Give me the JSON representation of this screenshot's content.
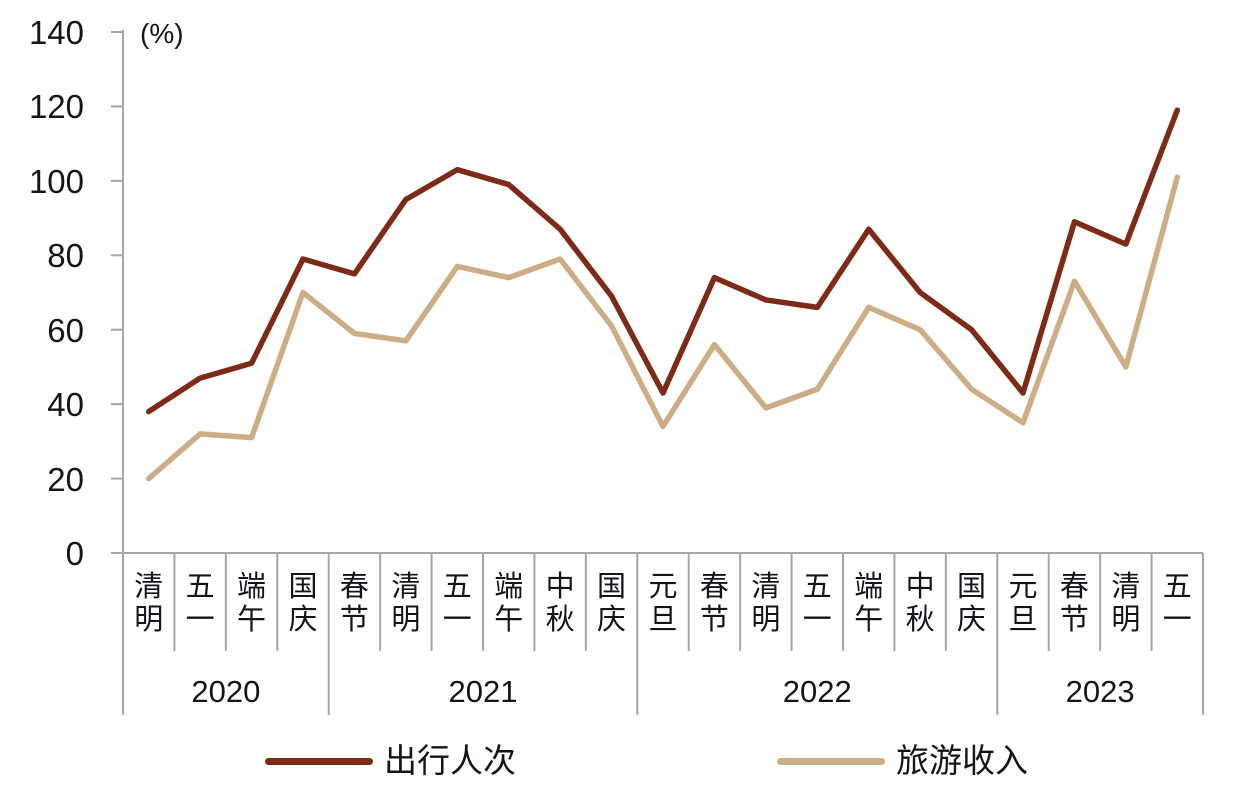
{
  "chart_data": {
    "type": "line",
    "title": "",
    "unit_label": "(%)",
    "xlabel": "",
    "ylabel": "",
    "ylim": [
      0,
      140
    ],
    "ytick_step": 20,
    "yticks": [
      0,
      20,
      40,
      60,
      80,
      100,
      120,
      140
    ],
    "grid": false,
    "legend_position": "bottom",
    "x_axis_groups": [
      {
        "year": "2020",
        "holidays": [
          "清明",
          "五一",
          "端午",
          "国庆"
        ]
      },
      {
        "year": "2021",
        "holidays": [
          "春节",
          "清明",
          "五一",
          "端午",
          "中秋",
          "国庆"
        ]
      },
      {
        "year": "2022",
        "holidays": [
          "元旦",
          "春节",
          "清明",
          "五一",
          "端午",
          "中秋",
          "国庆"
        ]
      },
      {
        "year": "2023",
        "holidays": [
          "元旦",
          "春节",
          "清明",
          "五一"
        ]
      }
    ],
    "categories": [
      "清明",
      "五一",
      "端午",
      "国庆",
      "春节",
      "清明",
      "五一",
      "端午",
      "中秋",
      "国庆",
      "元旦",
      "春节",
      "清明",
      "五一",
      "端午",
      "中秋",
      "国庆",
      "元旦",
      "春节",
      "清明",
      "五一"
    ],
    "series": [
      {
        "name": "出行人次",
        "color": "#7D2A16",
        "values": [
          38,
          47,
          51,
          79,
          75,
          95,
          103,
          99,
          87,
          69,
          43,
          74,
          68,
          66,
          87,
          70,
          60,
          43,
          89,
          83,
          119
        ]
      },
      {
        "name": "旅游收入",
        "color": "#CDAD85",
        "values": [
          20,
          32,
          31,
          70,
          59,
          57,
          77,
          74,
          79,
          61,
          34,
          56,
          39,
          44,
          66,
          60,
          44,
          35,
          73,
          50,
          101
        ]
      }
    ]
  },
  "colors": {
    "axis": "#A6A6A6",
    "text": "#14141C",
    "background": "#FFFFFF"
  }
}
